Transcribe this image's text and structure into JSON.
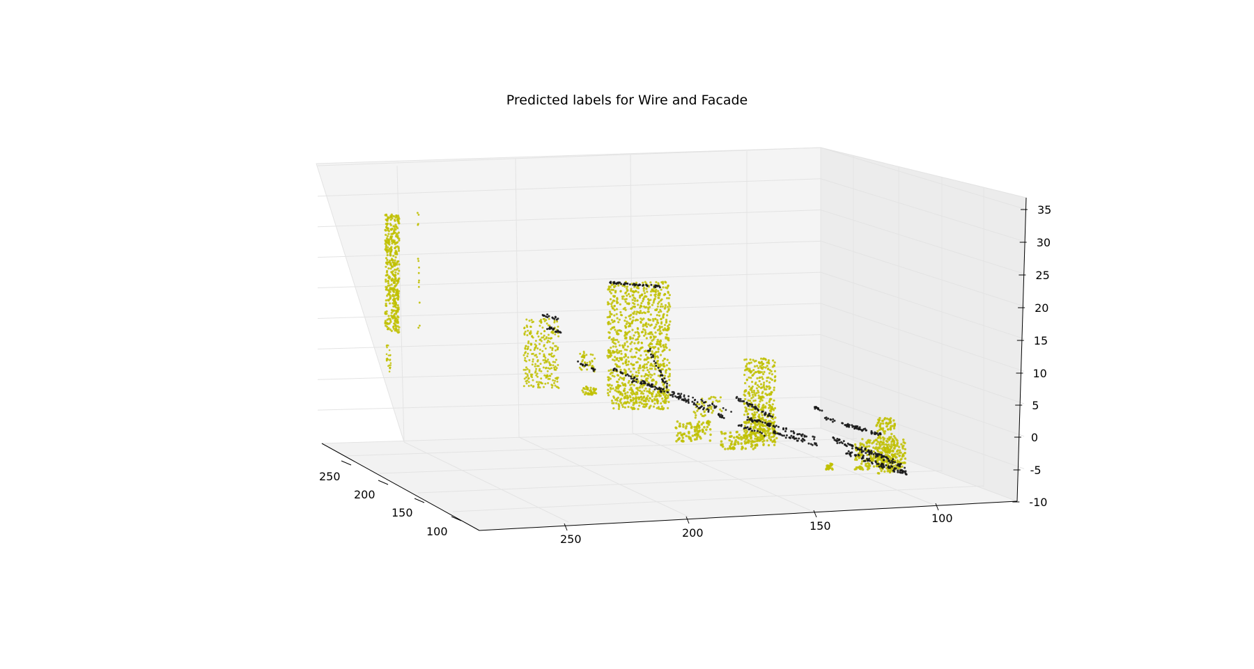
{
  "chart_data": {
    "type": "scatter",
    "title": "Predicted labels for Wire and Facade",
    "xlabel": "",
    "ylabel": "",
    "zlabel": "",
    "x_axis": {
      "ticks": [
        "250",
        "200",
        "150",
        "100"
      ],
      "range": [
        270,
        80
      ]
    },
    "y_axis": {
      "ticks": [
        "250",
        "200",
        "150",
        "100"
      ],
      "range": [
        270,
        80
      ]
    },
    "z_axis": {
      "ticks": [
        "35",
        "30",
        "25",
        "20",
        "15",
        "10",
        "5",
        "0",
        "-5",
        "-10"
      ],
      "range": [
        -10,
        35
      ]
    },
    "grid": true,
    "legend": "none",
    "series": [
      {
        "color": "#bfbf00"
      },
      {
        "color": "#1a1a1a"
      }
    ]
  }
}
